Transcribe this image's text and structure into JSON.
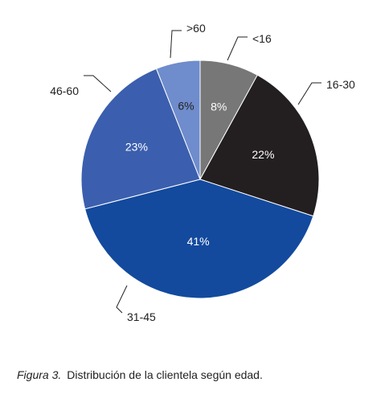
{
  "chart_data": {
    "type": "pie",
    "slices": [
      {
        "category": "<16",
        "value": 8,
        "label": "8%",
        "color": "#777777"
      },
      {
        "category": "16-30",
        "value": 22,
        "label": "22%",
        "color": "#231f20"
      },
      {
        "category": "31-45",
        "value": 41,
        "label": "41%",
        "color": "#134a9e"
      },
      {
        "category": "46-60",
        "value": 23,
        "label": "23%",
        "color": "#3b5fae"
      },
      {
        "category": ">60",
        "value": 6,
        "label": "6%",
        "color": "#6f8ccc"
      }
    ],
    "start_angle_deg": 0,
    "direction": "clockwise",
    "value_label_color": "#ffffff",
    "value_label_dark_color": "#222222"
  },
  "caption": {
    "figure": "Figura 3.",
    "text": "Distribución de la clientela según edad."
  }
}
